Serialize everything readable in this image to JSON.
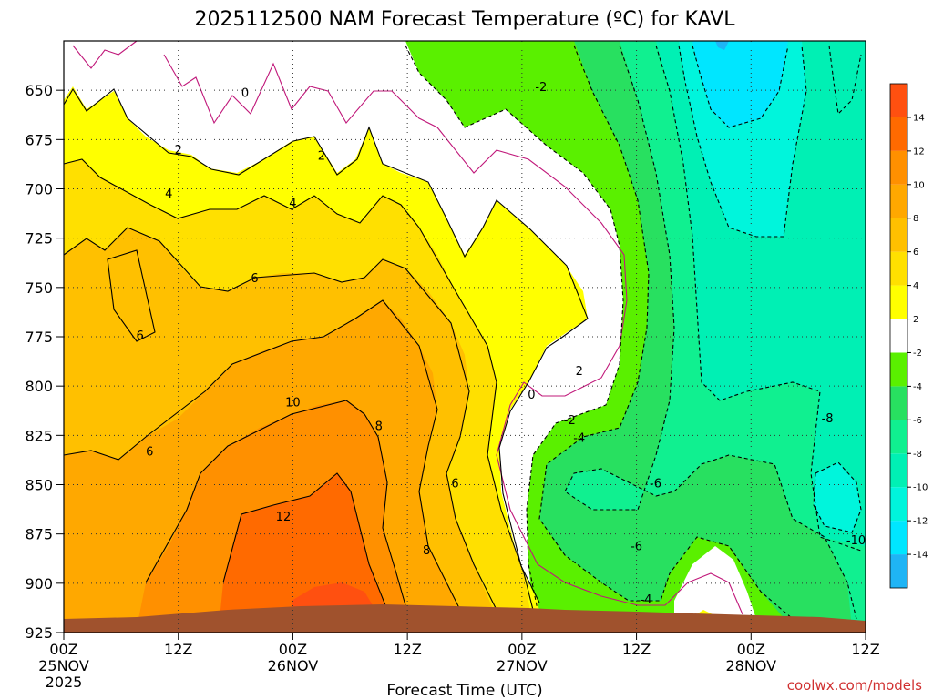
{
  "title": "2025112500 NAM Forecast Temperature (ºC) for KAVL",
  "credit": "coolwx.com/models",
  "chart_data": {
    "type": "heatmap",
    "title": "2025112500 NAM Forecast Temperature (ºC) for KAVL",
    "xlabel": "Forecast Time (UTC)",
    "ylabel": "",
    "x_unit": "forecast hour from 2025-11-25 00Z",
    "xlim": [
      0,
      84
    ],
    "ylim": [
      925,
      625
    ],
    "y_ticks": [
      650,
      675,
      700,
      725,
      750,
      775,
      800,
      825,
      850,
      875,
      900,
      925
    ],
    "x_ticks": [
      {
        "hour": 0,
        "line1": "00Z",
        "line2": "25NOV",
        "line3": "2025"
      },
      {
        "hour": 12,
        "line1": "12Z",
        "line2": "",
        "line3": ""
      },
      {
        "hour": 24,
        "line1": "00Z",
        "line2": "26NOV",
        "line3": ""
      },
      {
        "hour": 36,
        "line1": "12Z",
        "line2": "",
        "line3": ""
      },
      {
        "hour": 48,
        "line1": "00Z",
        "line2": "27NOV",
        "line3": ""
      },
      {
        "hour": 60,
        "line1": "12Z",
        "line2": "",
        "line3": ""
      },
      {
        "hour": 72,
        "line1": "00Z",
        "line2": "28NOV",
        "line3": ""
      },
      {
        "hour": 84,
        "line1": "12Z",
        "line2": "",
        "line3": ""
      }
    ],
    "grid": true,
    "legend": "colorbar-right",
    "colorbar": [
      {
        "label": "",
        "color": "#1fb4f5"
      },
      {
        "label": "-14",
        "color": "#00e6ff"
      },
      {
        "label": "-12",
        "color": "#00f5dc"
      },
      {
        "label": "-10",
        "color": "#00f0b4"
      },
      {
        "label": "-8",
        "color": "#10f090"
      },
      {
        "label": "-6",
        "color": "#28e060"
      },
      {
        "label": "-4",
        "color": "#5af000"
      },
      {
        "label": "-2",
        "color": "#ffffff"
      },
      {
        "label": "2",
        "color": "#ffff00"
      },
      {
        "label": "4",
        "color": "#ffe000"
      },
      {
        "label": "6",
        "color": "#ffc000"
      },
      {
        "label": "8",
        "color": "#ffa800"
      },
      {
        "label": "10",
        "color": "#ff9000"
      },
      {
        "label": "12",
        "color": "#ff6a00"
      },
      {
        "label": "14",
        "color": "#ff5010"
      }
    ],
    "contour_labels": [
      {
        "text": "0",
        "hour": 19,
        "p": 651
      },
      {
        "text": "2",
        "hour": 12,
        "p": 680
      },
      {
        "text": "4",
        "hour": 11,
        "p": 702
      },
      {
        "text": "4",
        "hour": 24,
        "p": 707
      },
      {
        "text": "2",
        "hour": 27,
        "p": 683
      },
      {
        "text": "6",
        "hour": 20,
        "p": 745
      },
      {
        "text": "6",
        "hour": 8,
        "p": 774
      },
      {
        "text": "6",
        "hour": 9,
        "p": 833
      },
      {
        "text": "10",
        "hour": 24,
        "p": 808
      },
      {
        "text": "12",
        "hour": 23,
        "p": 866
      },
      {
        "text": "8",
        "hour": 33,
        "p": 820
      },
      {
        "text": "6",
        "hour": 41,
        "p": 849
      },
      {
        "text": "8",
        "hour": 38,
        "p": 883
      },
      {
        "text": "-2",
        "hour": 50,
        "p": 648
      },
      {
        "text": "2",
        "hour": 54,
        "p": 792
      },
      {
        "text": "0",
        "hour": 49,
        "p": 804
      },
      {
        "text": "-2",
        "hour": 53,
        "p": 817
      },
      {
        "text": "-4",
        "hour": 54,
        "p": 826
      },
      {
        "text": "-6",
        "hour": 62,
        "p": 849
      },
      {
        "text": "-6",
        "hour": 60,
        "p": 881
      },
      {
        "text": "-4",
        "hour": 61,
        "p": 908
      },
      {
        "text": "-8",
        "hour": 80,
        "p": 816
      },
      {
        "text": "-10",
        "hour": 83,
        "p": 878
      }
    ]
  }
}
